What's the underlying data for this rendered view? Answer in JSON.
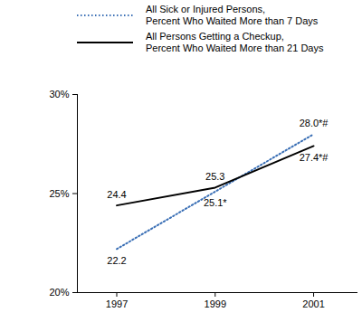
{
  "chart_data": {
    "type": "line",
    "x": [
      1997,
      1999,
      2001
    ],
    "xlim": [
      1996.2,
      2001.9
    ],
    "xticks": [
      1997,
      1999,
      2001
    ],
    "ylim": [
      20,
      30
    ],
    "yticks": [
      {
        "value": 20,
        "label": "20%"
      },
      {
        "value": 25,
        "label": "25%"
      },
      {
        "value": 30,
        "label": "30%"
      }
    ],
    "legend": "top",
    "data_labels": true,
    "series": [
      {
        "name": "All Sick or Injured Persons,\nPercent Who Waited More than 7 Days",
        "color": "#3a6fb5",
        "line_style": "dotted",
        "values": [
          22.2,
          25.1,
          28.0
        ],
        "value_labels": [
          "22.2",
          "25.1*",
          "28.0*#"
        ]
      },
      {
        "name": "All Persons Getting a Checkup,\nPercent Who Waited More than 21 Days",
        "color": "#000000",
        "line_style": "solid",
        "values": [
          24.4,
          25.3,
          27.4
        ],
        "value_labels": [
          "24.4",
          "25.3",
          "27.4*#"
        ]
      }
    ]
  }
}
